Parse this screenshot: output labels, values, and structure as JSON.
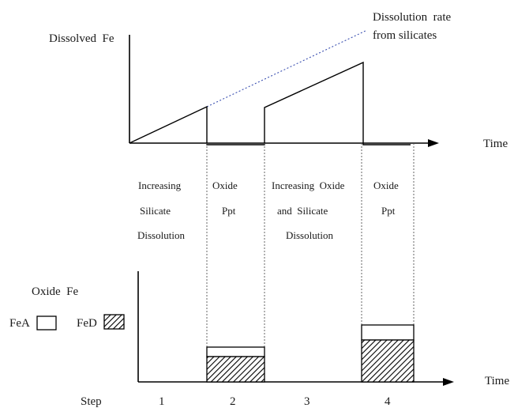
{
  "top_chart": {
    "ylabel": "Dissolved  Fe",
    "xlabel": "Time",
    "rate_label_line1": "Dissolution  rate",
    "rate_label_line2": "from silicates"
  },
  "phases": [
    {
      "lines": [
        "Increasing",
        "Silicate",
        "Dissolution"
      ]
    },
    {
      "lines": [
        "Oxide",
        "Ppt"
      ]
    },
    {
      "lines": [
        "Increasing  Oxide",
        "and  Silicate",
        "Dissolution"
      ]
    },
    {
      "lines": [
        "Oxide",
        "Ppt"
      ]
    }
  ],
  "bottom_chart": {
    "ylabel": "Oxide  Fe",
    "xlabel": "Time",
    "legend": [
      {
        "label": "FeA",
        "fill": "white"
      },
      {
        "label": "FeD",
        "fill": "hatched"
      }
    ]
  },
  "steps": {
    "label": "Step",
    "numbers": [
      "1",
      "2",
      "3",
      "4"
    ]
  }
}
